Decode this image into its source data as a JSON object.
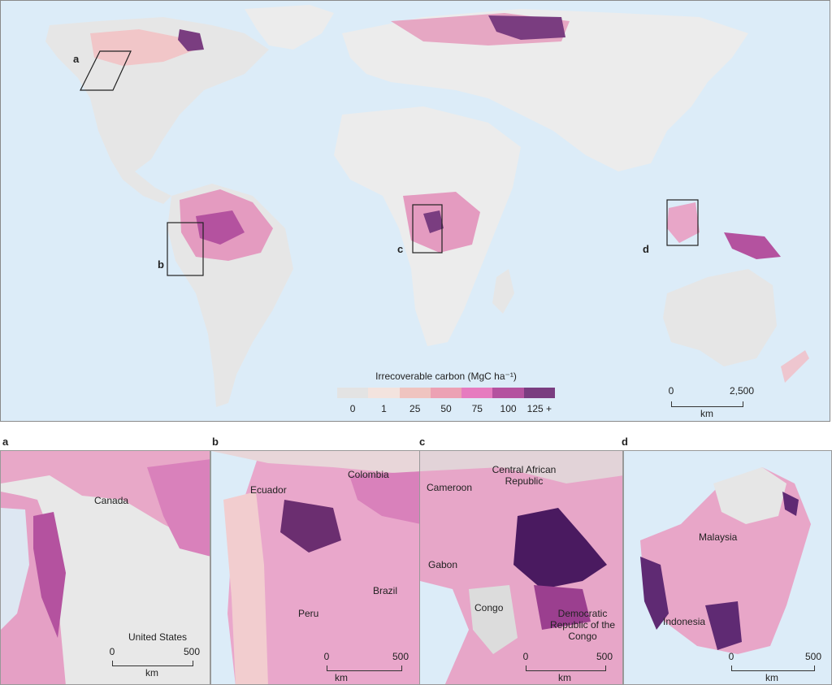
{
  "legend": {
    "title": "Irrecoverable carbon (MgC ha⁻¹)",
    "colors": [
      "#e3e3e3",
      "#f3e3de",
      "#efc4c0",
      "#eca1b4",
      "#e67bbf",
      "#b4529f",
      "#7a3d80"
    ],
    "ticks": [
      "0",
      "1",
      "25",
      "50",
      "75",
      "100",
      "125 +"
    ]
  },
  "main_scalebar": {
    "ticks": [
      "0",
      "2,500"
    ],
    "unit": "km"
  },
  "inset_markers": [
    "a",
    "b",
    "c",
    "d"
  ],
  "panels": [
    {
      "letter": "a",
      "places": [
        "Canada",
        "United States"
      ],
      "scale": {
        "ticks": [
          "0",
          "500"
        ],
        "unit": "km"
      }
    },
    {
      "letter": "b",
      "places": [
        "Ecuador",
        "Colombia",
        "Peru",
        "Brazil"
      ],
      "scale": {
        "ticks": [
          "0",
          "500"
        ],
        "unit": "km"
      }
    },
    {
      "letter": "c",
      "places": [
        "Cameroon",
        "Central African Republic",
        "Gabon",
        "Congo",
        "Democratic Republic of the Congo"
      ],
      "scale": {
        "ticks": [
          "0",
          "500"
        ],
        "unit": "km"
      }
    },
    {
      "letter": "d",
      "places": [
        "Malaysia",
        "Indonesia"
      ],
      "scale": {
        "ticks": [
          "0",
          "500"
        ],
        "unit": "km"
      }
    }
  ]
}
